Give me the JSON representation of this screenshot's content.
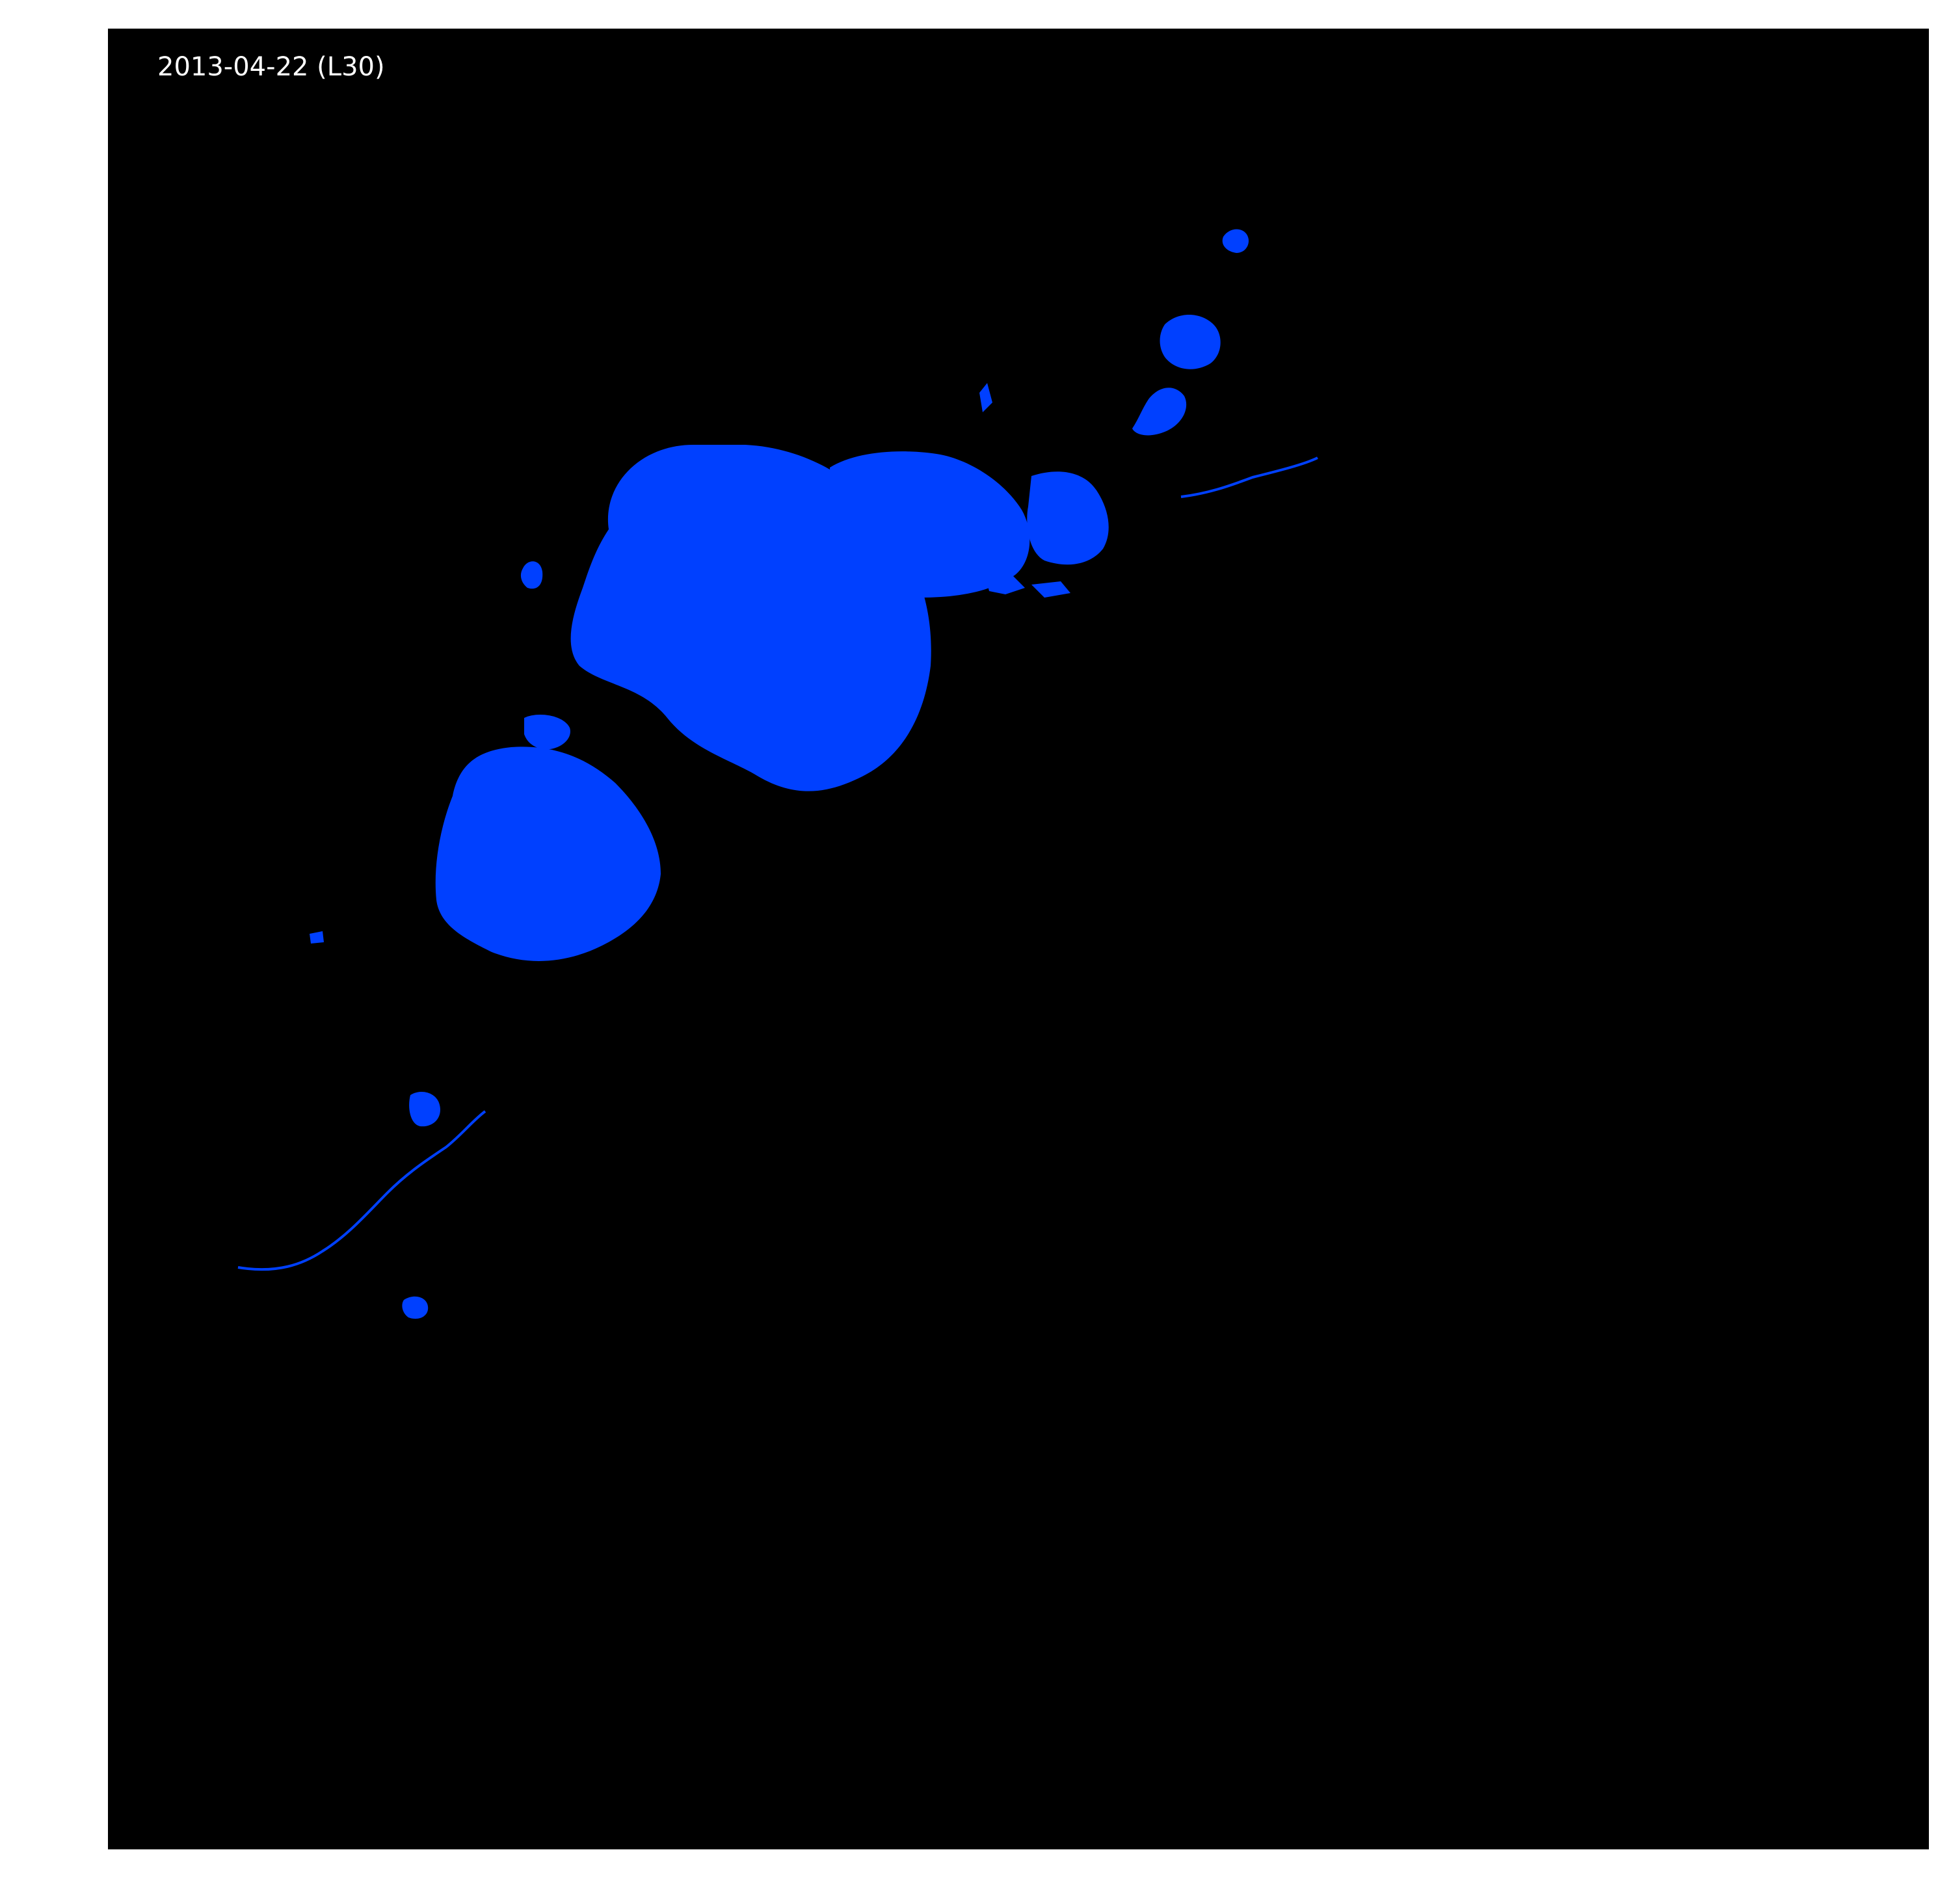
{
  "map": {
    "date_label": "2013-04-22 (L30)",
    "background_color": "#000000",
    "water_color": "#0040ff",
    "legend": "water mask (blue) over non-water (black)"
  }
}
